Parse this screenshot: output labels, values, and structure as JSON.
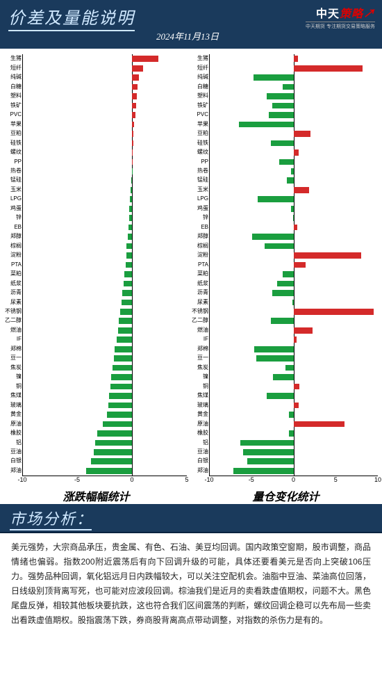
{
  "header": {
    "title": "价差及量能说明",
    "date": "2024年11月13日",
    "logo_main_a": "中天",
    "logo_main_b": "策略",
    "logo_sub": "中天期货  专注期货交易策略服务"
  },
  "colors": {
    "up": "#d42a2a",
    "down": "#1a9e3f",
    "header_bg": "#1a3a5c",
    "header_text": "#cfe8ff"
  },
  "categories": [
    "生猪",
    "短纤",
    "纯碱",
    "白糖",
    "塑料",
    "铁矿",
    "PVC",
    "苹果",
    "豆粕",
    "硅铁",
    "螺纹",
    "PP",
    "热卷",
    "锰硅",
    "玉米",
    "LPG",
    "鸡蛋",
    "锌",
    "EB",
    "郑醇",
    "棕榈",
    "淀粉",
    "PTA",
    "菜粕",
    "纸浆",
    "沥青",
    "尿素",
    "不锈钢",
    "乙二醇",
    "燃油",
    "IF",
    "郑棉",
    "豆一",
    "焦炭",
    "镍",
    "铜",
    "焦煤",
    "玻璃",
    "黄金",
    "原油",
    "橡胶",
    "铝",
    "豆油",
    "白银",
    "郑油"
  ],
  "chart_left": {
    "title": "涨跌幅幅统计",
    "xmin": -10,
    "xmax": 5,
    "xticks": [
      -10,
      -5,
      0,
      5
    ],
    "values": [
      2.4,
      1.0,
      0.6,
      0.5,
      0.45,
      0.35,
      0.3,
      0.2,
      0.1,
      0.08,
      0.05,
      0.02,
      -0.05,
      -0.1,
      -0.15,
      -0.2,
      -0.25,
      -0.3,
      -0.35,
      -0.4,
      -0.5,
      -0.55,
      -0.6,
      -0.7,
      -0.8,
      -0.9,
      -1.0,
      -1.1,
      -1.2,
      -1.3,
      -1.4,
      -1.6,
      -1.7,
      -1.8,
      -1.9,
      -2.0,
      -2.1,
      -2.2,
      -2.3,
      -2.7,
      -3.2,
      -3.4,
      -3.5,
      -3.8,
      -4.2
    ]
  },
  "chart_right": {
    "title": "量仓变化统计",
    "xmin": -10,
    "xmax": 10,
    "xticks": [
      -10,
      -5,
      0,
      5,
      10
    ],
    "values": [
      0.5,
      8.2,
      -4.8,
      -1.3,
      -3.2,
      -2.6,
      -3.0,
      -6.5,
      2.0,
      -2.7,
      0.6,
      -1.7,
      -0.3,
      -0.8,
      1.8,
      -4.3,
      -0.3,
      -0.1,
      0.4,
      -5.0,
      -3.5,
      8.0,
      1.4,
      -1.3,
      -2.0,
      -2.6,
      -0.2,
      9.5,
      -2.7,
      2.2,
      0.3,
      -4.7,
      -4.5,
      -1.0,
      -2.5,
      0.7,
      -3.2,
      0.6,
      -0.6,
      6.0,
      -0.6,
      -6.4,
      -6.0,
      -5.5,
      -7.2
    ]
  },
  "section_title": "市场分析：",
  "analysis_text": "美元强势，大宗商品承压，贵金属、有色、石油、美豆均回调。国内政策空窗期，股市调整，商品情绪也偏弱。指数200附近震荡后有向下回调升级的可能，具体还要看美元是否向上突破106压力。强势品种回调，氧化铝远月日内跌幅较大，可以关注空配机会。油脂中豆油、菜油高位回落，日线级别顶背离写死，也可能对应波段回调。棕油我们是近月的卖看跌虚值期权，问题不大。黑色尾盘反弹，相较其他板块要抗跌，这也符合我们区间震荡的判断，螺纹回调企稳可以先布局一些卖出看跌虚值期权。股指震荡下跌，券商股背离高点带动调整，对指数的杀伤力是有的。"
}
